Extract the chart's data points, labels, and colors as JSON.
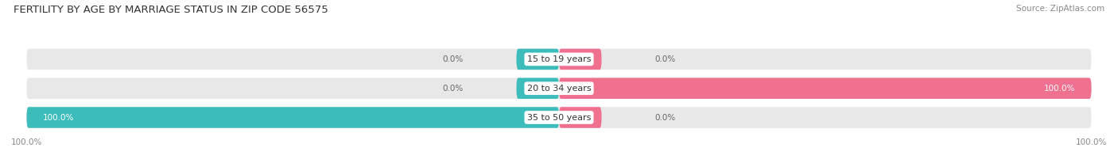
{
  "title": "FERTILITY BY AGE BY MARRIAGE STATUS IN ZIP CODE 56575",
  "source": "Source: ZipAtlas.com",
  "categories": [
    "15 to 19 years",
    "20 to 34 years",
    "35 to 50 years"
  ],
  "married_values": [
    0.0,
    0.0,
    100.0
  ],
  "unmarried_values": [
    0.0,
    100.0,
    0.0
  ],
  "married_color": "#3dbcbc",
  "unmarried_color": "#f07090",
  "bar_bg_color": "#e8e8e8",
  "title_fontsize": 9.5,
  "label_fontsize": 8,
  "value_fontsize": 7.5,
  "tick_fontsize": 7.5,
  "source_fontsize": 7.5,
  "legend_fontsize": 8,
  "bg_color": "#ffffff",
  "center_label_bg": "#ffffff"
}
